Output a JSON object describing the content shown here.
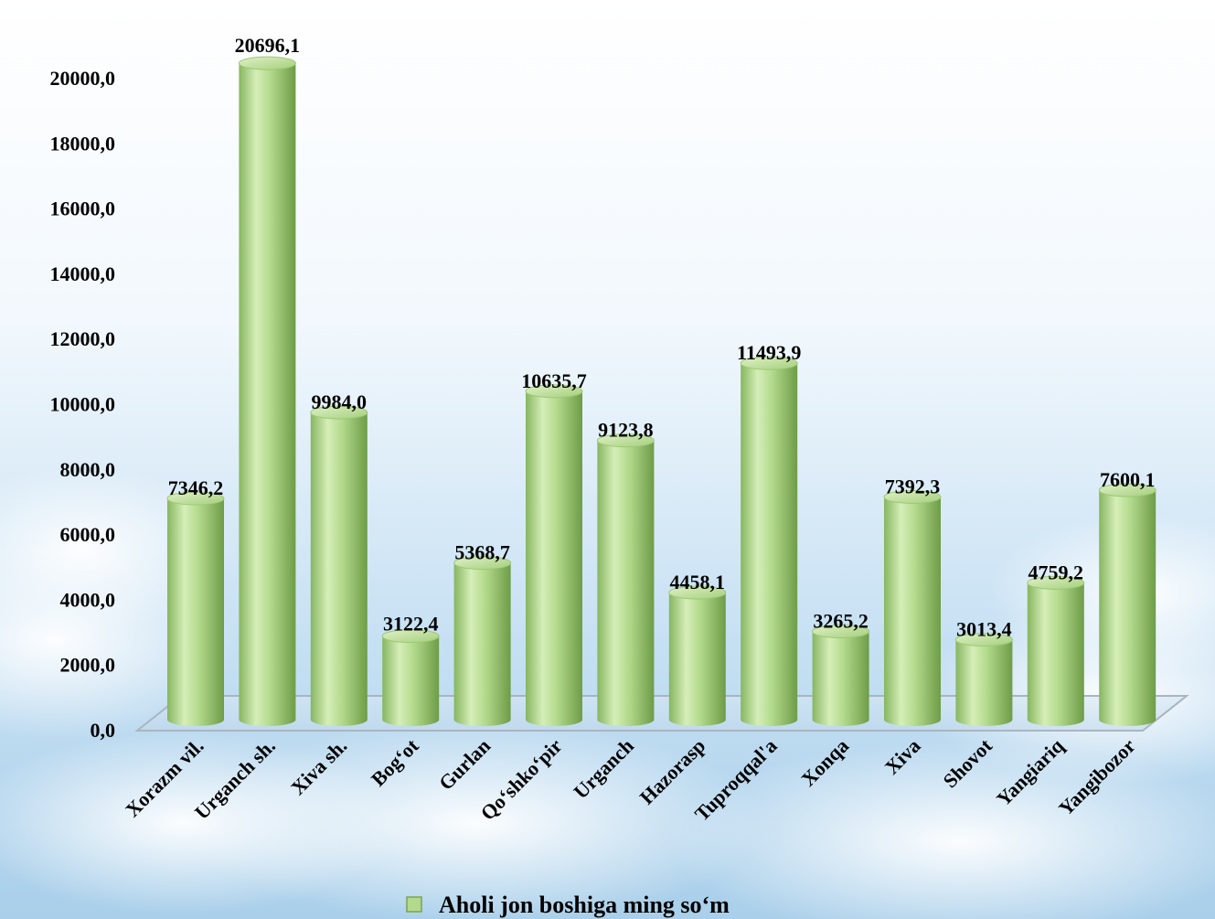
{
  "chart_data": {
    "type": "bar",
    "style": "3d-cylinder",
    "categories": [
      "Xorazm vil.",
      "Urganch sh.",
      "Xiva sh.",
      "Bog‘ot",
      "Gurlan",
      "Qo‘shko‘pir",
      "Urganch",
      "Hazorasp",
      "Tuproqqal'a",
      "Xonqa",
      "Xiva",
      "Shovot",
      "Yangiariq",
      "Yangibozor"
    ],
    "series": [
      {
        "name": "Aholi jon boshiga ming so‘m",
        "values": [
          7346.2,
          20696.1,
          9984.0,
          3122.4,
          5368.7,
          10635.7,
          9123.8,
          4458.1,
          11493.9,
          3265.2,
          7392.3,
          3013.4,
          4759.2,
          7600.1
        ],
        "data_labels": [
          "7346,2",
          "20696,1",
          "9984,0",
          "3122,4",
          "5368,7",
          "10635,7",
          "9123,8",
          "4458,1",
          "11493,9",
          "3265,2",
          "7392,3",
          "3013,4",
          "4759,2",
          "7600,1"
        ]
      }
    ],
    "ylim": [
      0,
      20000
    ],
    "yticks": [
      0,
      2000,
      4000,
      6000,
      8000,
      10000,
      12000,
      14000,
      16000,
      18000,
      20000
    ],
    "ytick_labels": [
      "0,0",
      "2000,0",
      "4000,0",
      "6000,0",
      "8000,0",
      "10000,0",
      "12000,0",
      "14000,0",
      "16000,0",
      "18000,0",
      "20000,0"
    ],
    "grid": false,
    "legend_position": "bottom",
    "colors": {
      "bar_light": "#d4ecb4",
      "bar_mid": "#a6d27e",
      "bar_dark": "#6f9e4a",
      "bar_top": "#c2e29c",
      "sky_top": "#ffffff",
      "sky_bottom": "#a9d0ec",
      "floor": "#b8d4e8"
    }
  }
}
